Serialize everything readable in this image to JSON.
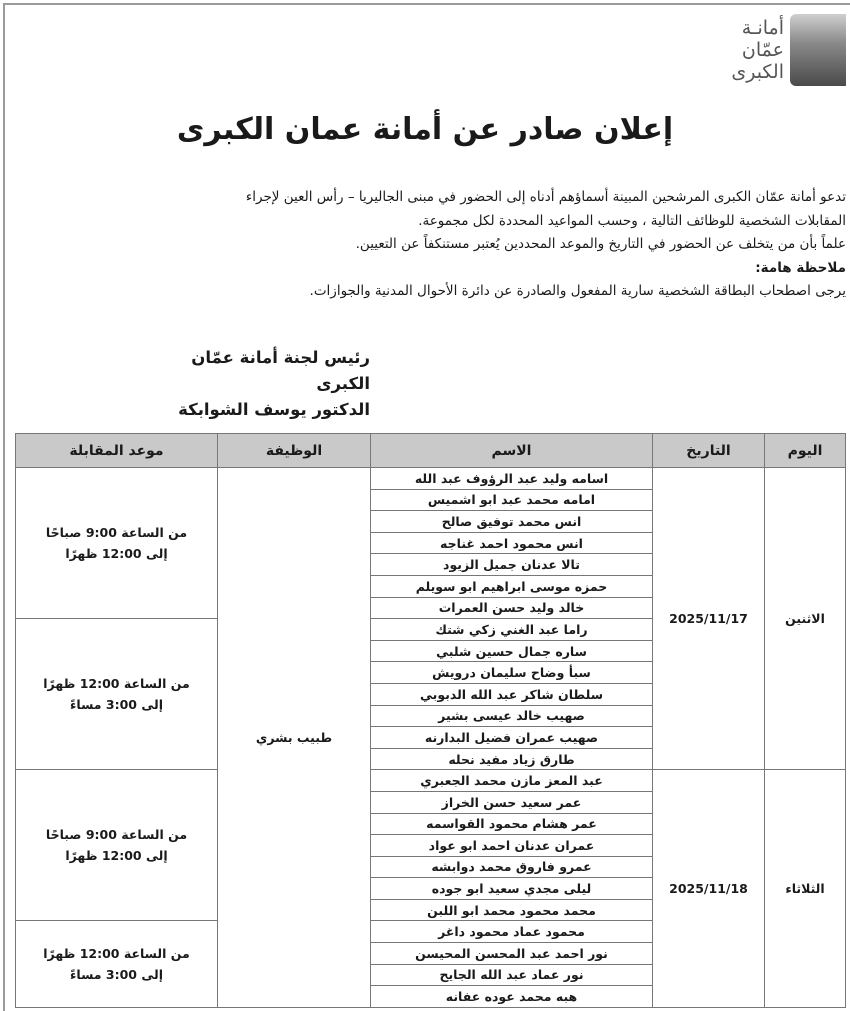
{
  "logo": {
    "lines": [
      "أمانـة",
      "عمّان",
      "الكبرى"
    ]
  },
  "title": "إعلان صادر عن أمانة عمان الكبرى",
  "intro": {
    "line1": "تدعو أمانة عمّان الكبرى المرشحين المبينة أسماؤهم أدناه إلى الحضور في مبنى الجاليريا – رأس العين لإجراء",
    "line2": "المقابلات الشخصية للوظائف التالية ، وحسب المواعيد المحددة لكل مجموعة.",
    "line3": "علماً بأن من يتخلف عن الحضور في التاريخ والموعد المحددين يُعتبر مستنكفاً عن التعيين.",
    "note_label": "ملاحظة هامة:",
    "note": "يرجى اصطحاب البطاقة الشخصية سارية المفعول والصادرة عن دائرة الأحوال المدنية والجوازات."
  },
  "signature": {
    "line1": "رئيس لجنة أمانة عمّان الكبرى",
    "line2": "الدكتور يوسف الشوابكة"
  },
  "table": {
    "headers": {
      "day": "اليوم",
      "date": "التاريخ",
      "name": "الاسم",
      "job": "الوظيفة",
      "time": "موعد المقابلة"
    },
    "job": "طبيب بشري",
    "days": [
      {
        "day": "الاثنين",
        "date": "2025/11/17"
      },
      {
        "day": "الثلاثاء",
        "date": "2025/11/18"
      }
    ],
    "slots": [
      {
        "from": "من الساعة 9:00 صباحًا",
        "to": "إلى 12:00 ظهرًا"
      },
      {
        "from": "من الساعة 12:00 ظهرًا",
        "to": "إلى 3:00 مساءً"
      },
      {
        "from": "من الساعة 9:00 صباحًا",
        "to": "إلى 12:00 ظهرًا"
      },
      {
        "from": "من الساعة 12:00 ظهرًا",
        "to": "إلى 3:00 مساءً"
      }
    ],
    "names": [
      "اسامه وليد عبد الرؤوف عبد الله",
      "امامه محمد عبد ابو اشميس",
      "انس محمد توفيق صالح",
      "انس محمود احمد غناجه",
      "تالا عدنان جميل الزيود",
      "حمزه موسى ابراهيم ابو سويلم",
      "خالد وليد حسن العمرات",
      "راما عبد الغني زكي شتك",
      "ساره جمال حسين شلبي",
      "سبأ وضاح سليمان درويش",
      "سلطان شاكر عبد الله الدبوبي",
      "صهيب خالد عيسى بشير",
      "صهيب عمران فضيل البدارنه",
      "طارق زياد مفيد نحله",
      "عبد المعز مازن محمد الجعبري",
      "عمر سعيد حسن الخراز",
      "عمر هشام محمود القواسمه",
      "عمران عدنان احمد ابو عواد",
      "عمرو فاروق محمد دوابشه",
      "ليلى مجدي سعيد ابو جوده",
      "محمد محمود محمد ابو اللبن",
      "محمود عماد محمود داغر",
      "نور احمد عبد المحسن المحيسن",
      "نور عماد عبد الله الجايح",
      "هبه محمد عوده عفانه"
    ]
  }
}
